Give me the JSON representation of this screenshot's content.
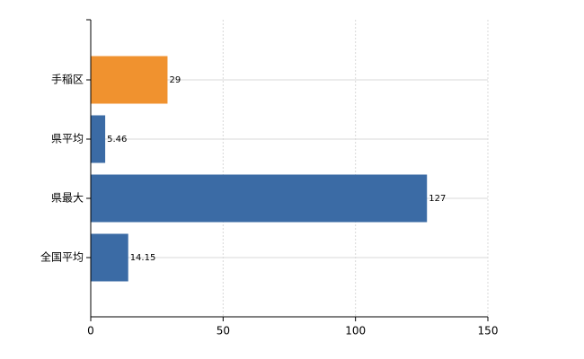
{
  "chart_data": {
    "type": "hbar",
    "categories": [
      "手稲区",
      "県平均",
      "県最大",
      "全国平均"
    ],
    "values": [
      29,
      5.46,
      127,
      14.15
    ],
    "colors": [
      "#f0922f",
      "#3b6ba5",
      "#3b6ba5",
      "#3b6ba5"
    ],
    "xlim": [
      0,
      150
    ],
    "xticks": [
      0,
      50,
      100,
      150
    ],
    "grid": true,
    "value_labels_shown": true
  }
}
